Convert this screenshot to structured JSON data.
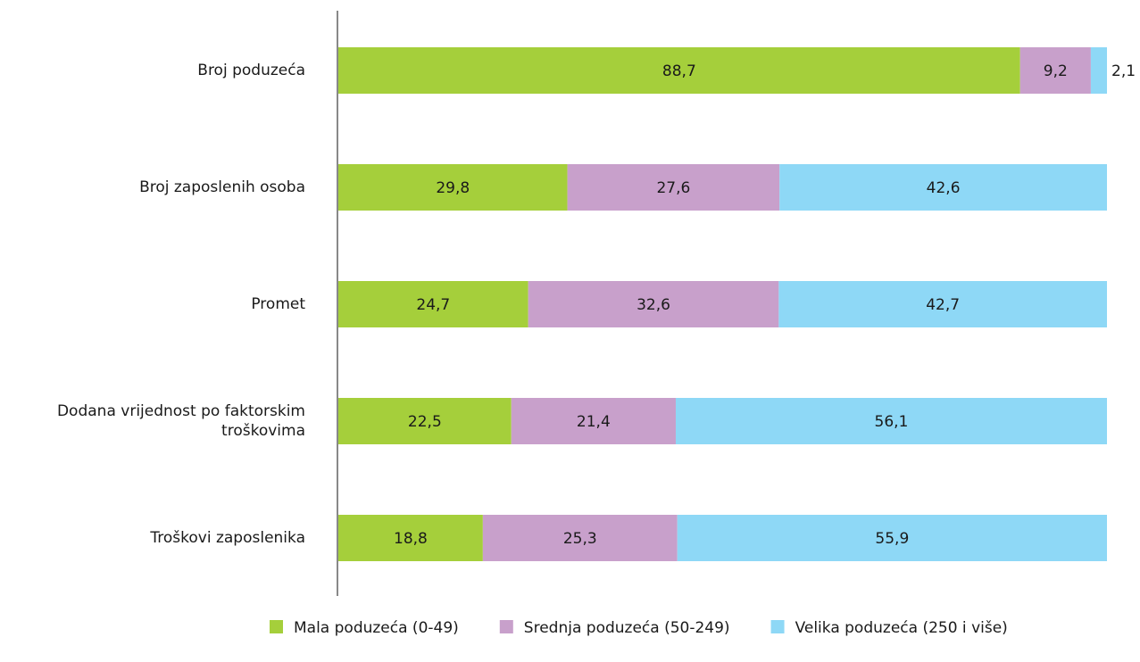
{
  "chart_data": {
    "type": "stacked_bar_horizontal",
    "categories": [
      "Broj poduzeća",
      "Broj zaposlenih osoba",
      "Promet",
      "Dodana vrijednost po faktorskim troškovima",
      "Troškovi zaposlenika"
    ],
    "xlim": [
      0,
      100
    ],
    "series": [
      {
        "name": "Mala poduzeća (0-49)",
        "color": "#a5cf3b",
        "values": [
          88.7,
          29.8,
          24.7,
          22.5,
          18.8
        ],
        "value_labels": [
          "88,7",
          "29,8",
          "24,7",
          "22,5",
          "18,8"
        ]
      },
      {
        "name": "Srednja poduzeća (50-249)",
        "color": "#c8a0cb",
        "values": [
          9.2,
          27.6,
          32.6,
          21.4,
          25.3
        ],
        "value_labels": [
          "9,2",
          "27,6",
          "32,6",
          "21,4",
          "25,3"
        ]
      },
      {
        "name": "Velika poduzeća (250 i više)",
        "color": "#8ed8f6",
        "values": [
          2.1,
          42.6,
          42.7,
          56.1,
          55.9
        ],
        "value_labels": [
          "2,1",
          "42,6",
          "42,7",
          "56,1",
          "55,9"
        ]
      }
    ],
    "legend": "bottom"
  }
}
